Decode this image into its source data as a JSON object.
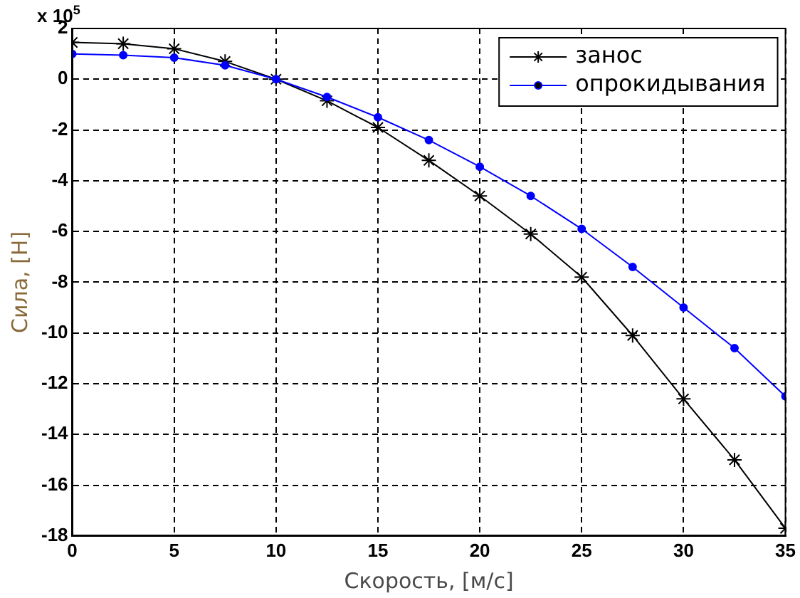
{
  "chart_data": {
    "type": "line",
    "xlabel": "Скорость, [м/с]",
    "ylabel": "Сила, [Н]",
    "x": [
      0,
      2.5,
      5,
      7.5,
      10,
      12.5,
      15,
      17.5,
      20,
      22.5,
      25,
      27.5,
      30,
      32.5,
      35
    ],
    "series": [
      {
        "name": "занос",
        "color": "#000000",
        "marker": "cross",
        "values": [
          1.45,
          1.4,
          1.2,
          0.7,
          0,
          -0.85,
          -1.9,
          -3.2,
          -4.6,
          -6.1,
          -7.8,
          -10.1,
          -12.6,
          -15.0,
          -17.7
        ]
      },
      {
        "name": "опрокидывания",
        "color": "#0000ff",
        "marker": "circle",
        "values": [
          1.0,
          0.95,
          0.85,
          0.55,
          0,
          -0.7,
          -1.5,
          -2.4,
          -3.45,
          -4.6,
          -5.9,
          -7.4,
          -9.0,
          -10.6,
          -12.5
        ]
      }
    ],
    "xlim": [
      0,
      35
    ],
    "xticks": [
      0,
      5,
      10,
      15,
      20,
      25,
      30,
      35
    ],
    "ylim": [
      -18,
      2
    ],
    "yticks": [
      2,
      0,
      -2,
      -4,
      -6,
      -8,
      -10,
      -12,
      -14,
      -16,
      -18
    ],
    "annotations": [
      "x 10$^{5}$"
    ],
    "grid": true,
    "legend": "top right",
    "line_style": "solid"
  }
}
